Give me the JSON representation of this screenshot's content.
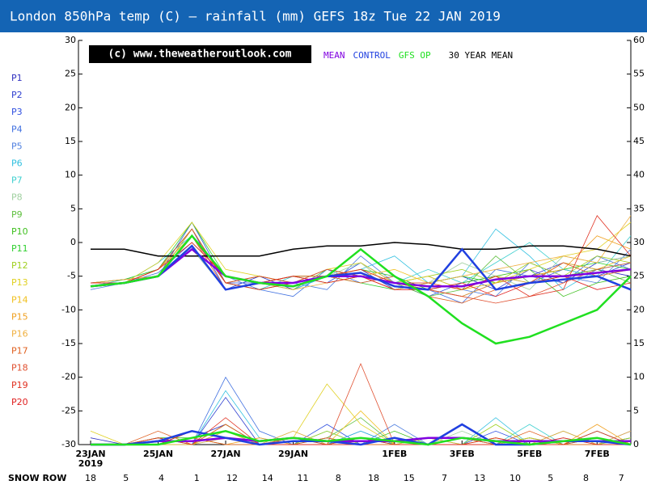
{
  "chart_data": {
    "type": "line",
    "title": "London 850hPa temp (C) — rainfall (mm)   GEFS 18z Tue 22 JAN 2019",
    "watermark": "(c) www.theweatheroutlook.com",
    "x": [
      0,
      1,
      2,
      3,
      4,
      5,
      6,
      7,
      8,
      9,
      10,
      11,
      12,
      13,
      14,
      15,
      16
    ],
    "xlim": [
      -0.36,
      16
    ],
    "xticks": [
      {
        "value": 0,
        "label": "23JAN"
      },
      {
        "value": 2,
        "label": "25JAN"
      },
      {
        "value": 4,
        "label": "27JAN"
      },
      {
        "value": 6,
        "label": "29JAN"
      },
      {
        "value": 9,
        "label": "1FEB"
      },
      {
        "value": 11,
        "label": "3FEB"
      },
      {
        "value": 13,
        "label": "5FEB"
      },
      {
        "value": 15,
        "label": "7FEB"
      }
    ],
    "year_label": "2019",
    "ylim": [
      -30,
      30
    ],
    "yticks": [
      -30,
      -25,
      -20,
      -15,
      -10,
      -5,
      0,
      5,
      10,
      15,
      20,
      25,
      30
    ],
    "y2lim": [
      0,
      60
    ],
    "y2ticks": [
      0,
      5,
      10,
      15,
      20,
      25,
      30,
      35,
      40,
      45,
      50,
      55,
      60
    ],
    "snow_row": {
      "label": "SNOW ROW",
      "values": [
        18,
        5,
        4,
        1,
        12,
        14,
        11,
        8,
        18,
        15,
        7,
        13,
        10,
        5,
        8,
        7
      ]
    },
    "series": [
      {
        "name": "30 YEAR MEAN",
        "color": "#000000",
        "values": [
          -1,
          -1,
          -2,
          -2,
          -2,
          -2,
          -1,
          -0.5,
          -0.5,
          0,
          -0.3,
          -1,
          -1,
          -0.5,
          -0.5,
          -1,
          -2
        ]
      },
      {
        "name": "MEAN",
        "color": "#8000e0",
        "values": [
          -6.5,
          -6,
          -5,
          -1,
          -5,
          -6,
          -6,
          -5,
          -5,
          -6,
          -6.5,
          -6.5,
          -5.5,
          -5,
          -5,
          -4.5,
          -4
        ],
        "rain": [
          0,
          0,
          0.5,
          0.5,
          1,
          0.5,
          1,
          0.5,
          0.5,
          0.5,
          1,
          1,
          0.5,
          0.5,
          0.5,
          0.5,
          0.5
        ]
      },
      {
        "name": "CONTROL",
        "color": "#2040e0",
        "values": [
          -6.5,
          -6,
          -5,
          -0.5,
          -7,
          -6,
          -6.5,
          -5,
          -4.5,
          -6.5,
          -7,
          -1,
          -7,
          -6,
          -5.5,
          -5,
          -7
        ],
        "rain": [
          0,
          0,
          0.5,
          2,
          1,
          0,
          0.5,
          0.5,
          0,
          1,
          0,
          3,
          0,
          0,
          0.5,
          0.5,
          0
        ]
      },
      {
        "name": "GFS OP",
        "color": "#20e020",
        "values": [
          -6.5,
          -6,
          -5,
          1,
          -5,
          -6,
          -6.5,
          -5,
          -1,
          -5,
          -8,
          -12,
          -15,
          -14,
          -12,
          -10,
          -5
        ],
        "rain": [
          0,
          0,
          0,
          1,
          2,
          0.5,
          1,
          0.5,
          1,
          0.5,
          0,
          1,
          0.5,
          0,
          0.5,
          1,
          0
        ]
      },
      {
        "name": "P1",
        "color": "#3030c0",
        "values": [
          -6,
          -6,
          -5,
          1,
          -6,
          -7,
          -6,
          -4,
          -5,
          -6,
          -7,
          -8,
          -6,
          -5,
          -3,
          -4,
          -5
        ],
        "rain": [
          1,
          0,
          0,
          1,
          3,
          0,
          0,
          1,
          0,
          0,
          1,
          0,
          0,
          1,
          0,
          0,
          1
        ]
      },
      {
        "name": "P2",
        "color": "#3040d0",
        "values": [
          -6.5,
          -6,
          -4,
          2,
          -7,
          -5,
          -7,
          -5,
          -4,
          -7,
          -6,
          -5,
          -7,
          -4,
          -6,
          -3,
          -2
        ],
        "rain": [
          0,
          0,
          1,
          0,
          7,
          0,
          1,
          0,
          2,
          0,
          0,
          1,
          0,
          0,
          2,
          0,
          0
        ]
      },
      {
        "name": "P3",
        "color": "#3050e0",
        "values": [
          -6,
          -5.5,
          -5,
          3,
          -6,
          -6,
          -5,
          -6,
          -3,
          -6,
          -8,
          -6,
          -5,
          -6,
          -4,
          -5,
          -3
        ],
        "rain": [
          0,
          0,
          0,
          2,
          1,
          0,
          0,
          3,
          0,
          1,
          0,
          0,
          2,
          0,
          0,
          1,
          0
        ]
      },
      {
        "name": "P4",
        "color": "#4070e0",
        "values": [
          -6,
          -6,
          -4.5,
          0,
          -5,
          -7,
          -8,
          -4,
          -6,
          -5,
          -7,
          -9,
          -4,
          -5,
          -6,
          -2,
          -4
        ],
        "rain": [
          0,
          0,
          1,
          0,
          10,
          2,
          0,
          0,
          1,
          0,
          0,
          0,
          0,
          1,
          0,
          0,
          2
        ]
      },
      {
        "name": "P5",
        "color": "#5080e0",
        "values": [
          -7,
          -6,
          -5,
          2,
          -6,
          -5,
          -6,
          -7,
          -2,
          -6,
          -5,
          -7,
          -8,
          -3,
          -5,
          -6,
          -1
        ],
        "rain": [
          0,
          0,
          0,
          1,
          2,
          0,
          1,
          0,
          0,
          3,
          0,
          1,
          0,
          0,
          0,
          2,
          0
        ]
      },
      {
        "name": "P6",
        "color": "#30c0e0",
        "values": [
          -6,
          -6,
          -3,
          1,
          -5,
          -6,
          -7,
          -5,
          -4,
          -2,
          -6,
          -5,
          2,
          -2,
          -7,
          -4,
          -3
        ],
        "rain": [
          0,
          0,
          0,
          0,
          8,
          1,
          0,
          0,
          2,
          0,
          0,
          0,
          4,
          0,
          0,
          1,
          0
        ]
      },
      {
        "name": "P7",
        "color": "#40d0d0",
        "values": [
          -6.5,
          -5.5,
          -4,
          2,
          -6,
          -7,
          -5,
          -6,
          -5,
          -6,
          -4,
          -6,
          -3,
          0,
          -4,
          -5,
          1
        ],
        "rain": [
          0,
          0,
          1,
          0,
          1,
          0,
          0,
          2,
          0,
          0,
          1,
          0,
          0,
          3,
          0,
          0,
          1
        ]
      },
      {
        "name": "P8",
        "color": "#a0d0a0",
        "values": [
          -6,
          -6,
          -5,
          -1,
          -7,
          -6,
          -6,
          -5,
          -3,
          -7,
          -6,
          -3,
          -5,
          -7,
          -2,
          -3,
          -2
        ],
        "rain": [
          0,
          0,
          0,
          1,
          0,
          0,
          2,
          0,
          0,
          0,
          0,
          2,
          0,
          0,
          1,
          0,
          0
        ]
      },
      {
        "name": "P9",
        "color": "#60c040",
        "values": [
          -6,
          -6,
          -4,
          1,
          -5,
          -6,
          -7,
          -4,
          -5,
          -6,
          -8,
          -7,
          -2,
          -6,
          -5,
          -4,
          -6
        ],
        "rain": [
          0,
          0,
          0,
          0,
          2,
          0,
          0,
          1,
          4,
          0,
          0,
          0,
          1,
          0,
          0,
          2,
          0
        ]
      },
      {
        "name": "P10",
        "color": "#40c020",
        "values": [
          -6.5,
          -6,
          -5,
          2,
          -6,
          -5,
          -6,
          -5,
          -4,
          -5,
          -7,
          -6,
          -5,
          -4,
          -8,
          -6,
          -5
        ],
        "rain": [
          0,
          0,
          1,
          1,
          0,
          0,
          1,
          0,
          0,
          2,
          0,
          0,
          0,
          1,
          0,
          0,
          0
        ]
      },
      {
        "name": "P11",
        "color": "#30d030",
        "values": [
          -6,
          -5.5,
          -4,
          3,
          -5,
          -6,
          -5,
          -5,
          -6,
          -7,
          -6,
          -5,
          -6,
          -5,
          -4,
          -3,
          -4
        ],
        "rain": [
          0,
          0,
          0,
          2,
          1,
          0,
          0,
          0,
          1,
          0,
          0,
          1,
          0,
          0,
          0,
          1,
          0
        ]
      },
      {
        "name": "P12",
        "color": "#a0d020",
        "values": [
          -6,
          -6,
          -4,
          2,
          -6,
          -7,
          -6,
          -5,
          -4,
          -6,
          -5,
          -4,
          -6,
          -3,
          -5,
          -2,
          -3
        ],
        "rain": [
          0,
          0,
          0,
          0,
          3,
          0,
          0,
          2,
          0,
          0,
          0,
          0,
          3,
          0,
          0,
          0,
          1
        ]
      },
      {
        "name": "P13",
        "color": "#e0d020",
        "values": [
          -6.5,
          -6,
          -3,
          3,
          -4,
          -5,
          -6,
          -4,
          -3,
          -6,
          -5,
          -7,
          -6,
          -4,
          -2,
          -1,
          3
        ],
        "rain": [
          2,
          0,
          0,
          1,
          0,
          0,
          1,
          9,
          3,
          0,
          0,
          0,
          0,
          1,
          0,
          0,
          0
        ]
      },
      {
        "name": "P14",
        "color": "#f0c020",
        "values": [
          -6,
          -6,
          -4,
          1,
          -5,
          -6,
          -5,
          -6,
          -5,
          -4,
          -6,
          -7,
          -5,
          -6,
          -3,
          -4,
          -2
        ],
        "rain": [
          0,
          0,
          1,
          0,
          2,
          0,
          0,
          0,
          5,
          0,
          1,
          0,
          0,
          0,
          2,
          0,
          0
        ]
      },
      {
        "name": "P15",
        "color": "#f0a020",
        "values": [
          -6,
          -5.5,
          -5,
          2,
          -6,
          -5,
          -6,
          -5,
          -4,
          -6,
          -7,
          -8,
          -6,
          -5,
          -4,
          1,
          -1
        ],
        "rain": [
          0,
          0,
          0,
          1,
          0,
          1,
          0,
          0,
          0,
          1,
          0,
          0,
          1,
          0,
          0,
          3,
          0
        ]
      },
      {
        "name": "P16",
        "color": "#f0b040",
        "values": [
          -6.5,
          -6,
          -4,
          0,
          -5,
          -6,
          -7,
          -6,
          -5,
          -7,
          -6,
          -5,
          -4,
          -3,
          -2,
          -3,
          4
        ],
        "rain": [
          0,
          0,
          0,
          0,
          1,
          0,
          2,
          0,
          0,
          0,
          0,
          1,
          0,
          0,
          0,
          0,
          2
        ]
      },
      {
        "name": "P17",
        "color": "#e06020",
        "values": [
          -6,
          -6,
          -5,
          1,
          -7,
          -6,
          -5,
          -5,
          -6,
          -5,
          -8,
          -9,
          -7,
          -6,
          -3,
          -5,
          -4
        ],
        "rain": [
          0,
          0,
          2,
          0,
          3,
          0,
          0,
          1,
          0,
          0,
          0,
          0,
          0,
          2,
          0,
          0,
          0
        ]
      },
      {
        "name": "P18",
        "color": "#e05030",
        "values": [
          -6,
          -6,
          -4,
          2,
          -6,
          -5,
          -6,
          -4,
          -5,
          -6,
          -7,
          -8,
          -9,
          -8,
          -6,
          -4,
          -3
        ],
        "rain": [
          0,
          0,
          0,
          1,
          0,
          0,
          1,
          0,
          12,
          0,
          0,
          1,
          0,
          0,
          0,
          1,
          0
        ]
      },
      {
        "name": "P19",
        "color": "#e03020",
        "values": [
          -6.5,
          -6,
          -5,
          1,
          -6,
          -7,
          -6,
          -5,
          -4,
          -6,
          -6,
          -7,
          -5,
          -8,
          -7,
          4,
          -2
        ],
        "rain": [
          0,
          0,
          1,
          0,
          4,
          0,
          0,
          0,
          1,
          0,
          0,
          0,
          1,
          0,
          0,
          2,
          0
        ]
      },
      {
        "name": "P20",
        "color": "#e02020",
        "values": [
          -6,
          -6,
          -4,
          0,
          -5,
          -6,
          -5,
          -6,
          -5,
          -7,
          -7,
          -6,
          -8,
          -6,
          -5,
          -7,
          -6
        ],
        "rain": [
          0,
          0,
          0,
          2,
          1,
          0,
          0,
          0,
          0,
          1,
          0,
          0,
          0,
          0,
          1,
          0,
          0
        ]
      }
    ]
  }
}
